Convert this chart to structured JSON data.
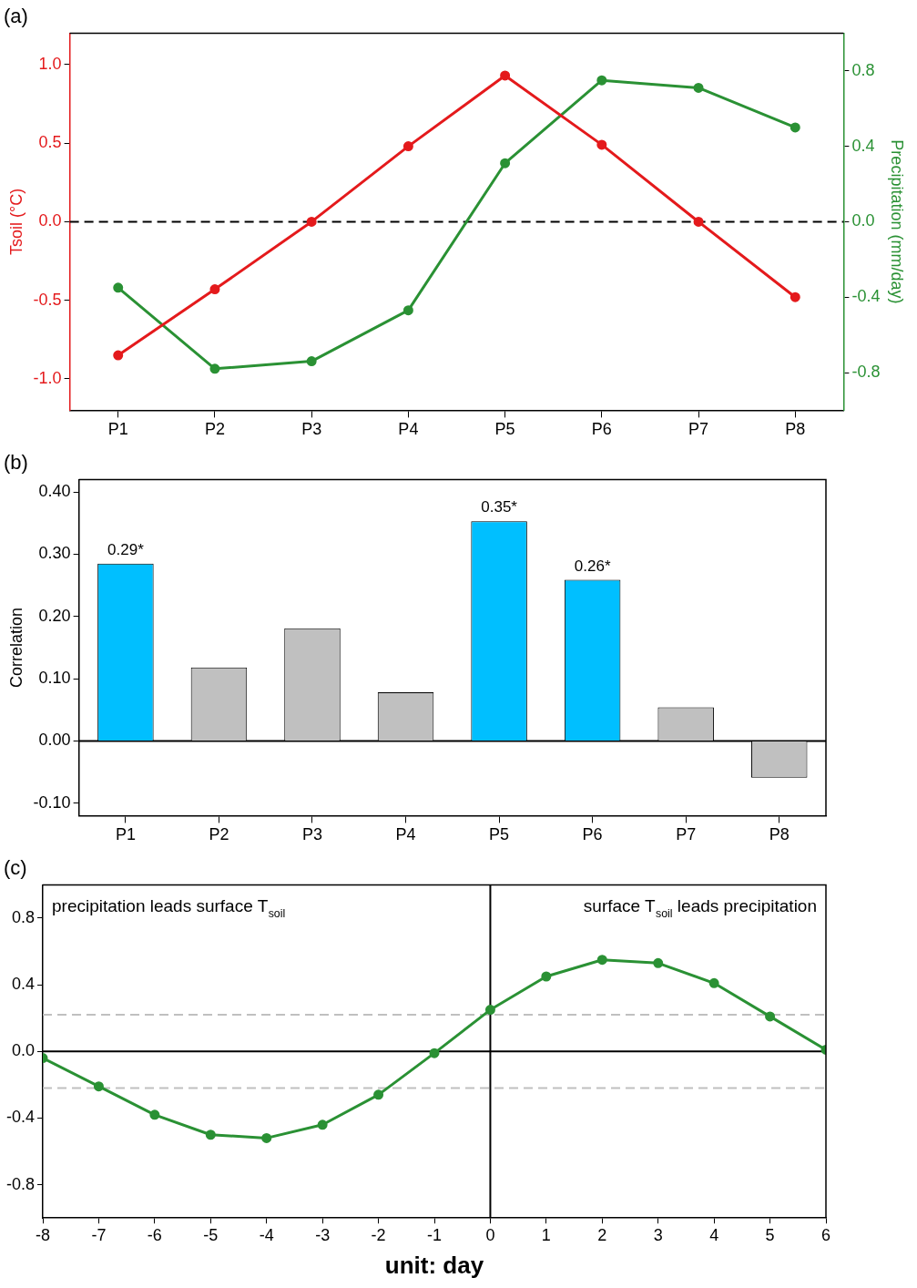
{
  "chart_data": [
    {
      "type": "line",
      "title": "(a)",
      "categories": [
        "P1",
        "P2",
        "P3",
        "P4",
        "P5",
        "P6",
        "P7",
        "P8"
      ],
      "series": [
        {
          "color": "#e41a1c",
          "values": [
            -0.85,
            -0.43,
            0.0,
            0.48,
            0.93,
            0.49,
            0.0,
            -0.48
          ]
        },
        {
          "color": "#2a9134",
          "axis": "y2",
          "values": [
            -0.35,
            -0.78,
            -0.74,
            -0.47,
            0.31,
            0.75,
            0.71,
            0.5
          ]
        }
      ],
      "ylabel": "Tsoil (°C)",
      "y2label": "Precipitation (mm/day)",
      "ylim": [
        -1.2,
        1.2
      ],
      "yticks": [
        {
          "value": -1,
          "label": "-1.0"
        },
        -0.5,
        {
          "value": 0,
          "label": "0.0"
        },
        0.5,
        {
          "value": 1,
          "label": "1.0"
        }
      ],
      "y2lim": [
        -1,
        1
      ],
      "y2ticks": [
        -0.8,
        -0.4,
        {
          "value": 0,
          "label": "0.0"
        },
        0.4,
        0.8
      ],
      "ref_lines": [
        {
          "axis": "y",
          "value": 0,
          "color": "#000000",
          "line_style": "dashed"
        }
      ],
      "marker": "circle",
      "grid": false,
      "legend": false
    },
    {
      "type": "bar",
      "title": "(b)",
      "ylabel": "Correlation",
      "categories": [
        "P1",
        "P2",
        "P3",
        "P4",
        "P5",
        "P6",
        "P7",
        "P8"
      ],
      "values": [
        0.285,
        0.118,
        0.181,
        0.078,
        0.353,
        0.259,
        0.054,
        -0.059
      ],
      "colors": [
        "#00bfff",
        "#c0c0c0",
        "#c0c0c0",
        "#c0c0c0",
        "#00bfff",
        "#00bfff",
        "#c0c0c0",
        "#c0c0c0"
      ],
      "value_labels": [
        "0.29*",
        null,
        null,
        null,
        "0.35*",
        "0.26*",
        null,
        null
      ],
      "ylim": [
        -0.12,
        0.42
      ],
      "yticks": [
        {
          "value": -0.1,
          "label": "-0.10"
        },
        {
          "value": 0,
          "label": "0.00"
        },
        {
          "value": 0.1,
          "label": "0.10"
        },
        {
          "value": 0.2,
          "label": "0.20"
        },
        {
          "value": 0.3,
          "label": "0.30"
        },
        {
          "value": 0.4,
          "label": "0.40"
        }
      ],
      "ref_lines": [
        {
          "axis": "y",
          "value": 0,
          "color": "#000000"
        }
      ],
      "grid": false,
      "legend": false
    },
    {
      "type": "line",
      "title": "(c)",
      "xlabel": "unit: day",
      "x": [
        -8,
        -7,
        -6,
        -5,
        -4,
        -3,
        -2,
        -1,
        0,
        1,
        2,
        3,
        4,
        5,
        6
      ],
      "xlim": [
        -8,
        6
      ],
      "xticks": [
        -8,
        -7,
        -6,
        -5,
        -4,
        -3,
        -2,
        -1,
        0,
        1,
        2,
        3,
        4,
        5,
        6
      ],
      "ylim": [
        -1,
        1
      ],
      "yticks": [
        -0.8,
        -0.4,
        {
          "value": 0,
          "label": "0.0"
        },
        0.4,
        0.8
      ],
      "series": [
        {
          "color": "#2a9134",
          "values": [
            -0.04,
            -0.21,
            -0.38,
            -0.5,
            -0.52,
            -0.44,
            -0.26,
            -0.01,
            0.25,
            0.45,
            0.55,
            0.53,
            0.41,
            0.21,
            0.01
          ]
        }
      ],
      "ref_lines": [
        {
          "axis": "y",
          "value": 0,
          "color": "#000000"
        },
        {
          "axis": "x",
          "value": 0,
          "color": "#000000"
        },
        {
          "axis": "y",
          "value": 0.22,
          "color": "#c0c0c0",
          "line_style": "dashed"
        },
        {
          "axis": "y",
          "value": -0.22,
          "color": "#c0c0c0",
          "line_style": "dashed"
        }
      ],
      "annotations": [
        "precipitation leads surface T$_{soil}$",
        "surface T$_{soil}$ leads precipitation"
      ],
      "marker": "circle",
      "grid": false,
      "legend": false
    }
  ]
}
